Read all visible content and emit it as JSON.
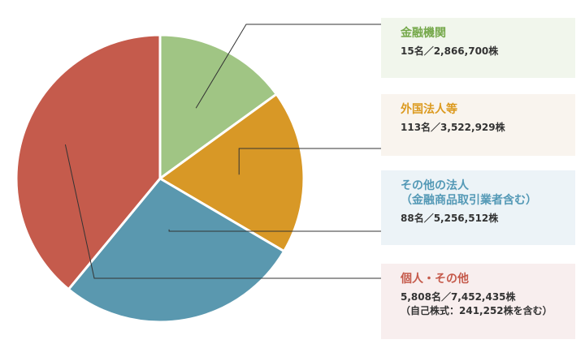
{
  "chart_data": {
    "type": "pie",
    "start_angle_deg": 0,
    "direction": "clockwise",
    "slice_border_color": "#ffffff",
    "leader_line_color": "#333333",
    "slices": [
      {
        "title": "金融機関",
        "detail": "15名／2,866,700株",
        "holders": 15,
        "shares": 2866700,
        "color": "#a0c584",
        "title_color": "#75a84a",
        "box_bg": "#f1f6ec"
      },
      {
        "title": "外国法人等",
        "detail": "113名／3,522,929株",
        "holders": 113,
        "shares": 3522929,
        "color": "#d89826",
        "title_color": "#dc9a1f",
        "box_bg": "#f9f4ee"
      },
      {
        "title": "その他の法人",
        "title2": "（金融商品取引業者含む）",
        "detail": "88名／5,256,512株",
        "holders": 88,
        "shares": 5256512,
        "color": "#5a98af",
        "title_color": "#5499b6",
        "box_bg": "#ecf3f7"
      },
      {
        "title": "個人・その他",
        "detail": "5,808名／7,452,435株",
        "detail2": "（自己株式：241,252株を含む）",
        "holders": 5808,
        "shares": 7452435,
        "color": "#c55b4c",
        "title_color": "#c55a4b",
        "box_bg": "#f8eeee"
      }
    ]
  }
}
